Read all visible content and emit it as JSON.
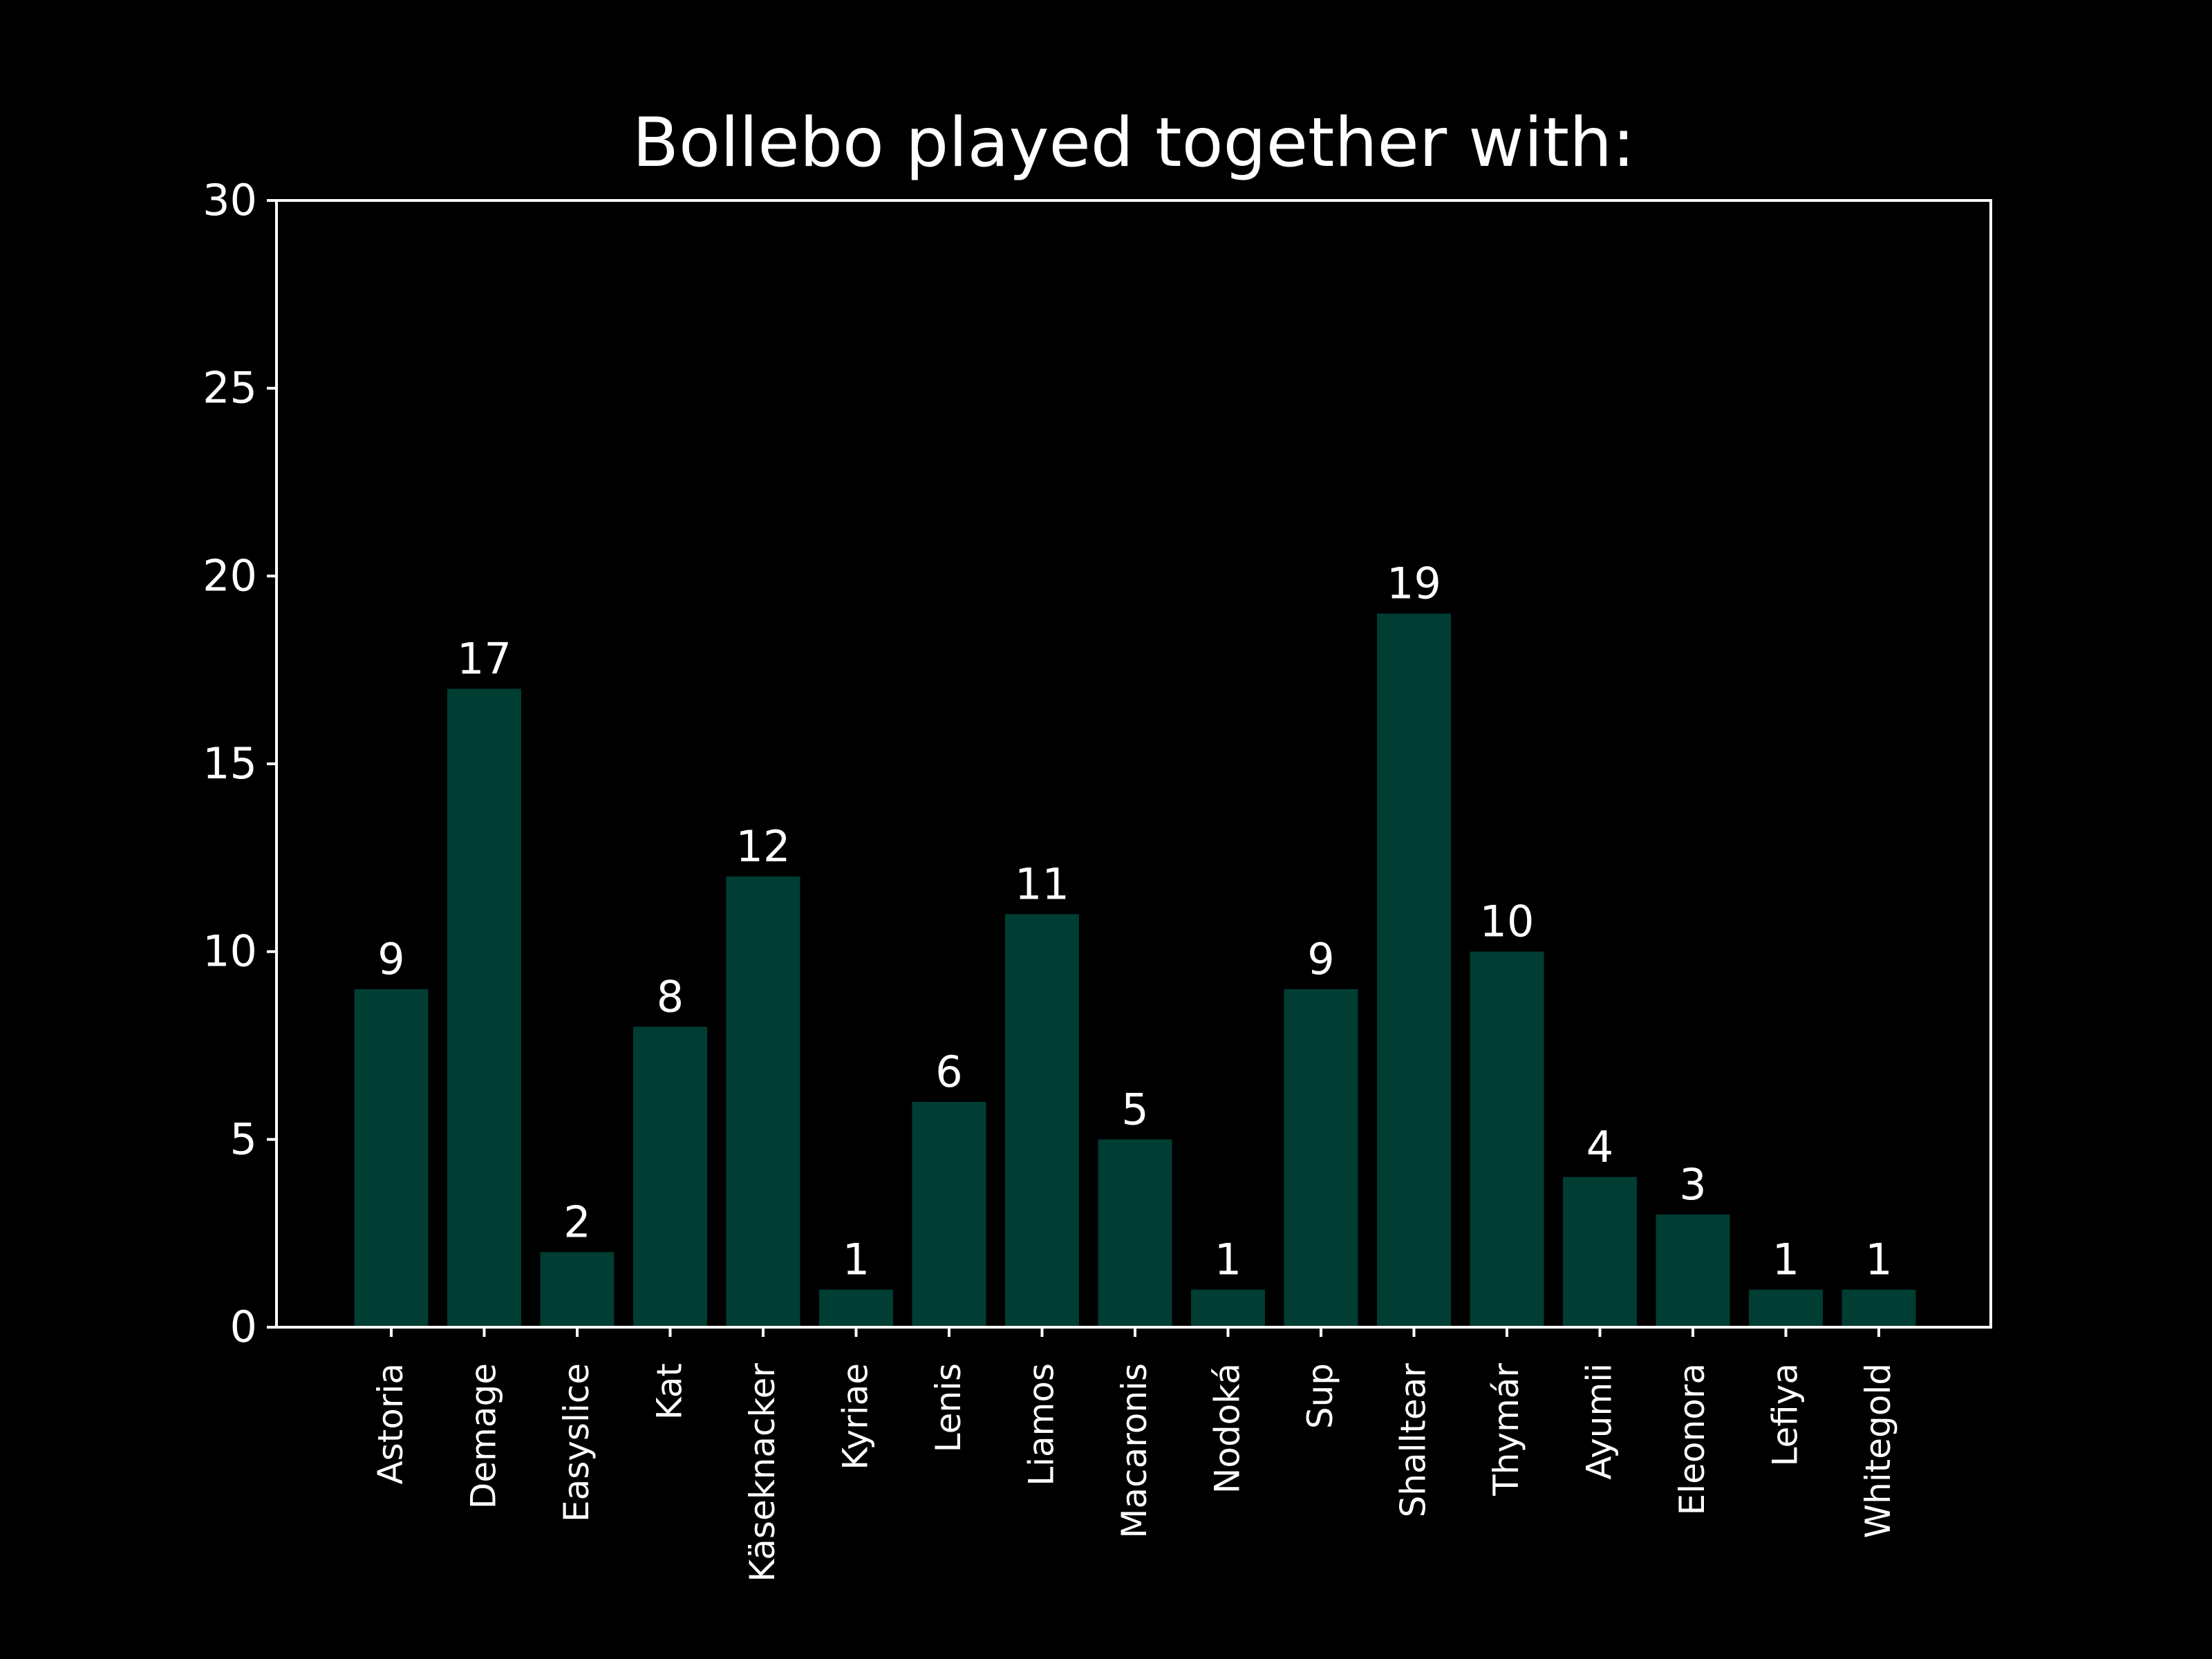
{
  "chart_data": {
    "type": "bar",
    "title": "Bollebo played together with:",
    "xlabel": "",
    "ylabel": "",
    "categories": [
      "Astoria",
      "Demage",
      "Easyslice",
      "Kat",
      "Käseknacker",
      "Kyriae",
      "Lenis",
      "Liamos",
      "Macaronis",
      "Nodoká",
      "Sup",
      "Shalltear",
      "Thymár",
      "Ayumii",
      "Eleonora",
      "Lefiya",
      "Whitegold"
    ],
    "values": [
      9,
      17,
      2,
      8,
      12,
      1,
      6,
      11,
      5,
      1,
      9,
      19,
      10,
      4,
      3,
      1,
      1
    ],
    "ylim": [
      0,
      30
    ],
    "yticks": [
      0,
      5,
      10,
      15,
      20,
      25,
      30
    ],
    "grid": false,
    "data_labels": true,
    "tick_label_rotation": "vertical"
  },
  "colors": {
    "background": "#000000",
    "bar": "#003d33",
    "axis": "#ffffff",
    "text": "#ffffff"
  }
}
